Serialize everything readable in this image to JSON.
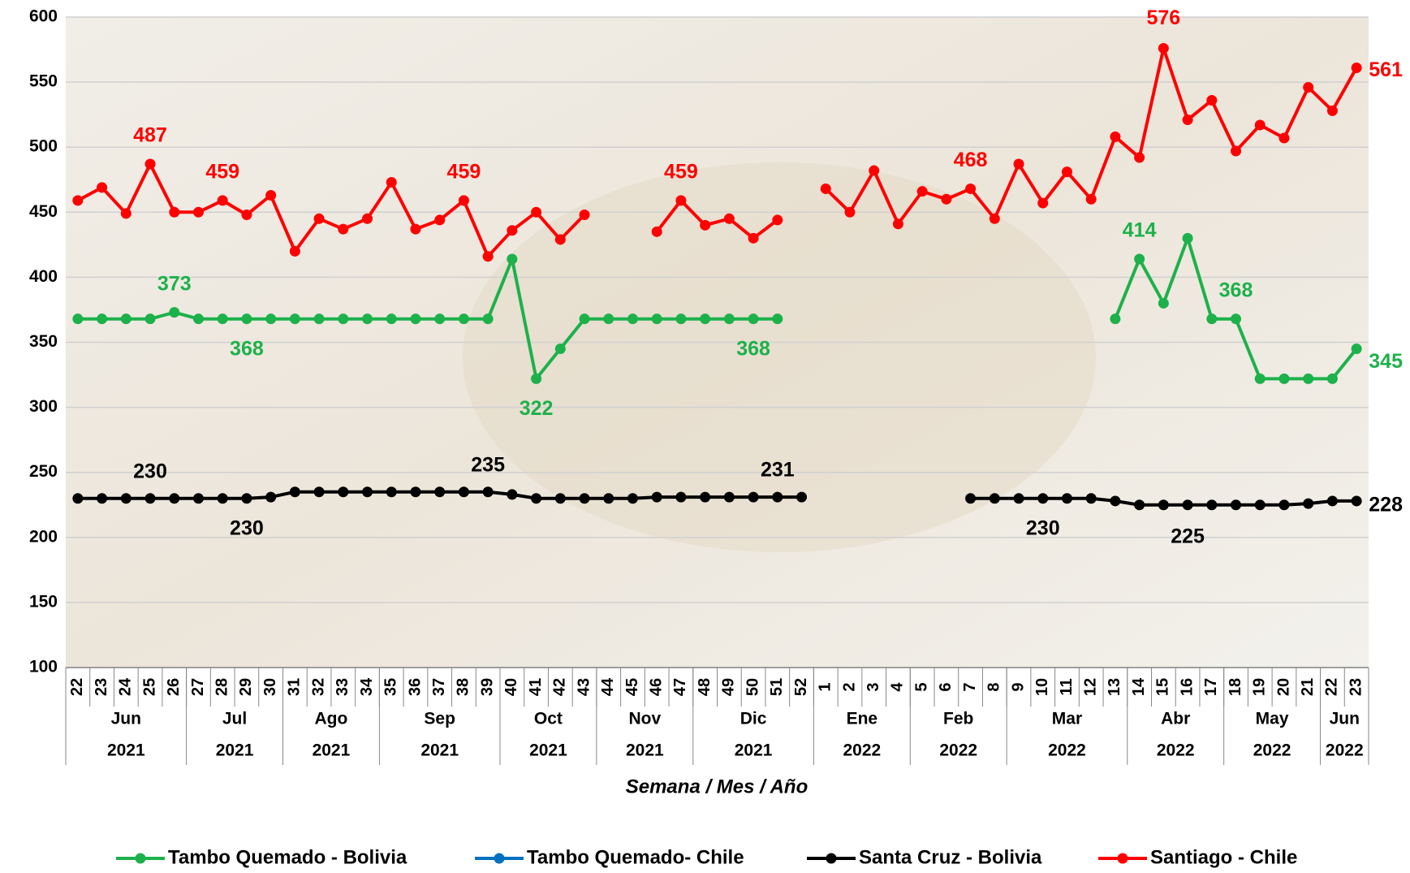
{
  "chart_data": {
    "type": "line",
    "x_axis_title": "Semana / Mes / Año",
    "categories": [
      "22",
      "23",
      "24",
      "25",
      "26",
      "27",
      "28",
      "29",
      "30",
      "31",
      "32",
      "33",
      "34",
      "35",
      "36",
      "37",
      "38",
      "39",
      "40",
      "41",
      "42",
      "43",
      "44",
      "45",
      "46",
      "47",
      "48",
      "49",
      "50",
      "51",
      "52",
      "1",
      "2",
      "3",
      "4",
      "5",
      "6",
      "7",
      "8",
      "9",
      "10",
      "11",
      "12",
      "13",
      "14",
      "15",
      "16",
      "17",
      "18",
      "19",
      "20",
      "21",
      "22",
      "23"
    ],
    "months": [
      {
        "label": "Jun",
        "year": "2021",
        "span": 5
      },
      {
        "label": "Jul",
        "year": "2021",
        "span": 4
      },
      {
        "label": "Ago",
        "year": "2021",
        "span": 4
      },
      {
        "label": "Sep",
        "year": "2021",
        "span": 5
      },
      {
        "label": "Oct",
        "year": "2021",
        "span": 4
      },
      {
        "label": "Nov",
        "year": "2021",
        "span": 4
      },
      {
        "label": "Dic",
        "year": "2021",
        "span": 5
      },
      {
        "label": "Ene",
        "year": "2022",
        "span": 4
      },
      {
        "label": "Feb",
        "year": "2022",
        "span": 4
      },
      {
        "label": "Mar",
        "year": "2022",
        "span": 5
      },
      {
        "label": "Abr",
        "year": "2022",
        "span": 4
      },
      {
        "label": "May",
        "year": "2022",
        "span": 4
      },
      {
        "label": "Jun",
        "year": "2022",
        "span": 2
      }
    ],
    "ylim": [
      100,
      600
    ],
    "yticks": [
      100,
      150,
      200,
      250,
      300,
      350,
      400,
      450,
      500,
      550,
      600
    ],
    "grid": true,
    "series": [
      {
        "name": "Tambo Quemado - Bolivia",
        "color": "#1db14b",
        "values": [
          368,
          368,
          368,
          368,
          373,
          368,
          368,
          368,
          368,
          368,
          368,
          368,
          368,
          368,
          368,
          368,
          368,
          368,
          414,
          322,
          345,
          368,
          368,
          368,
          368,
          368,
          368,
          368,
          368,
          368,
          null,
          null,
          null,
          null,
          null,
          null,
          null,
          null,
          null,
          null,
          null,
          null,
          null,
          368,
          414,
          380,
          430,
          368,
          368,
          322,
          322,
          322,
          322,
          345
        ]
      },
      {
        "name": "Tambo Quemado- Chile",
        "color": "#0070c0",
        "values": [
          null,
          null,
          null,
          null,
          null,
          null,
          null,
          null,
          null,
          null,
          null,
          null,
          null,
          null,
          null,
          null,
          null,
          null,
          null,
          null,
          null,
          null,
          null,
          null,
          null,
          null,
          null,
          null,
          null,
          null,
          null,
          null,
          null,
          null,
          null,
          null,
          null,
          null,
          null,
          null,
          null,
          null,
          null,
          null,
          null,
          null,
          null,
          null,
          null,
          null,
          null,
          null,
          null,
          null
        ]
      },
      {
        "name": "Santa Cruz - Bolivia",
        "color": "#000000",
        "values": [
          230,
          230,
          230,
          230,
          230,
          230,
          230,
          230,
          231,
          235,
          235,
          235,
          235,
          235,
          235,
          235,
          235,
          235,
          233,
          230,
          230,
          230,
          230,
          230,
          231,
          231,
          231,
          231,
          231,
          231,
          231,
          null,
          null,
          null,
          null,
          null,
          null,
          230,
          230,
          230,
          230,
          230,
          230,
          228,
          225,
          225,
          225,
          225,
          225,
          225,
          225,
          226,
          228,
          228
        ]
      },
      {
        "name": "Santiago - Chile",
        "color": "#ff0000",
        "values": [
          459,
          469,
          449,
          487,
          450,
          450,
          459,
          448,
          463,
          420,
          445,
          437,
          445,
          473,
          437,
          444,
          459,
          416,
          436,
          450,
          429,
          448,
          null,
          null,
          435,
          459,
          440,
          445,
          430,
          444,
          null,
          468,
          450,
          482,
          441,
          466,
          460,
          468,
          445,
          487,
          457,
          481,
          460,
          508,
          492,
          576,
          521,
          536,
          497,
          517,
          507,
          546,
          528,
          561
        ]
      }
    ]
  }
}
